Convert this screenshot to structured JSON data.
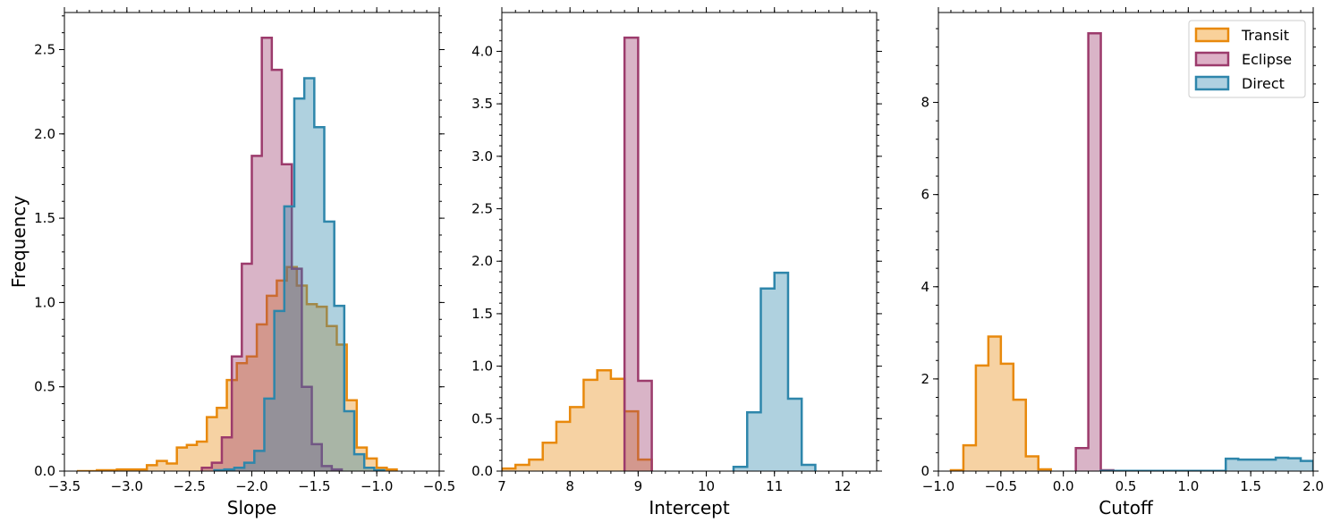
{
  "colors": {
    "Transit": "#E8890C",
    "Eclipse": "#9C3B6C",
    "Direct": "#2E86AB"
  },
  "fills": {
    "Transit": "#F9D19A",
    "Eclipse": "#DDB0C6",
    "Direct": "#AFD1E1"
  },
  "legend": {
    "placement": "top-right",
    "entries": [
      "Transit",
      "Eclipse",
      "Direct"
    ]
  },
  "chart_data": [
    {
      "type": "histogram",
      "xlabel": "Slope",
      "ylabel": "Frequency",
      "xlim": [
        -3.5,
        -0.5
      ],
      "ylim": [
        0,
        2.72
      ],
      "xticks": [
        -3.5,
        -3.0,
        -2.5,
        -2.0,
        -1.5,
        -1.0,
        -0.5
      ],
      "xtick_labels": [
        "−3.5",
        "−3.0",
        "−2.5",
        "−2.0",
        "−1.5",
        "−1.0",
        "−0.5"
      ],
      "yticks": [
        0,
        0.5,
        1.0,
        1.5,
        2.0,
        2.5
      ],
      "ytick_labels": [
        "0.0",
        "0.5",
        "1.0",
        "1.5",
        "2.0",
        "2.5"
      ],
      "series": [
        {
          "name": "Transit",
          "bin_start": -3.4,
          "bin_width": 0.08,
          "values": [
            0.0,
            0.0,
            0.005,
            0.005,
            0.01,
            0.01,
            0.01,
            0.035,
            0.06,
            0.045,
            0.14,
            0.155,
            0.175,
            0.32,
            0.375,
            0.54,
            0.64,
            0.68,
            0.87,
            1.04,
            1.13,
            1.21,
            1.1,
            0.99,
            0.975,
            0.86,
            0.75,
            0.42,
            0.14,
            0.075,
            0.02,
            0.01
          ]
        },
        {
          "name": "Eclipse",
          "bin_start": -2.4,
          "bin_width": 0.08,
          "values": [
            0.02,
            0.05,
            0.2,
            0.68,
            1.23,
            1.87,
            2.57,
            2.38,
            1.82,
            1.2,
            0.5,
            0.16,
            0.03,
            0.01
          ]
        },
        {
          "name": "Direct",
          "bin_start": -2.3,
          "bin_width": 0.08,
          "values": [
            0.005,
            0.01,
            0.02,
            0.05,
            0.12,
            0.43,
            0.95,
            1.57,
            2.21,
            2.33,
            2.04,
            1.48,
            0.98,
            0.355,
            0.1,
            0.02,
            0.005
          ]
        }
      ]
    },
    {
      "type": "histogram",
      "xlabel": "Intercept",
      "ylabel": "",
      "xlim": [
        7.0,
        12.5
      ],
      "ylim": [
        0,
        4.37
      ],
      "xticks": [
        7,
        8,
        9,
        10,
        11,
        12
      ],
      "xtick_labels": [
        "7",
        "8",
        "9",
        "10",
        "11",
        "12"
      ],
      "yticks": [
        0,
        0.5,
        1.0,
        1.5,
        2.0,
        2.5,
        3.0,
        3.5,
        4.0
      ],
      "ytick_labels": [
        "0.0",
        "0.5",
        "1.0",
        "1.5",
        "2.0",
        "2.5",
        "3.0",
        "3.5",
        "4.0"
      ],
      "series": [
        {
          "name": "Transit",
          "bin_start": 7.0,
          "bin_width": 0.2,
          "values": [
            0.025,
            0.06,
            0.11,
            0.27,
            0.47,
            0.61,
            0.87,
            0.96,
            0.88,
            0.57,
            0.11
          ]
        },
        {
          "name": "Eclipse",
          "bin_start": 8.8,
          "bin_width": 0.2,
          "values": [
            4.13,
            0.86
          ]
        },
        {
          "name": "Direct",
          "bin_start": 10.4,
          "bin_width": 0.2,
          "values": [
            0.04,
            0.56,
            1.74,
            1.89,
            0.69,
            0.06
          ]
        }
      ]
    },
    {
      "type": "histogram",
      "xlabel": "Cutoff",
      "ylabel": "",
      "xlim": [
        -1.0,
        2.0
      ],
      "ylim": [
        0,
        9.95
      ],
      "xticks": [
        -1.0,
        -0.5,
        0.0,
        0.5,
        1.0,
        1.5,
        2.0
      ],
      "xtick_labels": [
        "−1.0",
        "−0.5",
        "0.0",
        "0.5",
        "1.0",
        "1.5",
        "2.0"
      ],
      "yticks": [
        0,
        2,
        4,
        6,
        8
      ],
      "ytick_labels": [
        "0",
        "2",
        "4",
        "6",
        "8"
      ],
      "series": [
        {
          "name": "Transit",
          "bin_start": -0.9,
          "bin_width": 0.1,
          "values": [
            0.02,
            0.56,
            2.29,
            2.92,
            2.33,
            1.55,
            0.32,
            0.04
          ]
        },
        {
          "name": "Eclipse",
          "bin_start": 0.1,
          "bin_width": 0.1,
          "values": [
            0.5,
            9.5,
            0.02
          ]
        },
        {
          "name": "Direct",
          "bin_start": 0.3,
          "bin_width": 0.1,
          "values": [
            0.005,
            0.005,
            0.005,
            0.005,
            0.005,
            0.005,
            0.005,
            0.005,
            0.005,
            0.005,
            0.27,
            0.25,
            0.25,
            0.25,
            0.29,
            0.28,
            0.22
          ]
        }
      ]
    }
  ]
}
